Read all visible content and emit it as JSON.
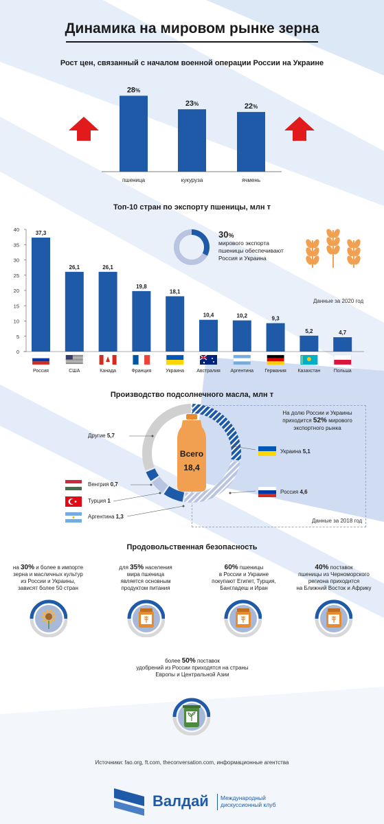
{
  "title": "Динамика на мировом рынке зерна",
  "colors": {
    "primary": "#1e5aa8",
    "light": "#b8c4e0",
    "gray": "#d0d0d0",
    "arrow": "#e11b1b",
    "orange": "#f0a050",
    "icon_blue": "#a8b8d8"
  },
  "price_section": {
    "title": "Рост цен, связанный с началом военной операции России на Украине"
  },
  "exports_section": {
    "title": "Топ-10 стран по экспорту пшеницы, млн т",
    "note": "Данные за 2020 год",
    "share_value": "30",
    "share_unit": "%",
    "share_line1": "мирового экспорта",
    "share_line2": "пшеницы обеспечивают",
    "share_line3": "Россия и Украина"
  },
  "sunflower_section": {
    "title": "Производство подсолнечного масла, млн т",
    "total_label": "Всего",
    "total_value": "18,4",
    "share_line1": "На долю России и Украины",
    "share_line2_pre": "приходится ",
    "share_line2_val": "52%",
    "share_line2_post": " мирового",
    "share_line3": "экспортного рынка",
    "note": "Данные за 2018 год",
    "labels": {
      "other": "Другие",
      "other_val": "5,7",
      "hungary": "Венгрия",
      "hungary_val": "0,7",
      "turkey": "Турция",
      "turkey_val": "1",
      "argentina": "Аргентина",
      "argentina_val": "1,3",
      "ukraine": "Украина",
      "ukraine_val": "5,1",
      "russia": "Россия",
      "russia_val": "4,6"
    }
  },
  "security_section": {
    "title": "Продовольственная безопасность",
    "items": [
      {
        "pre": "на ",
        "val": "30%",
        "l1": " и более в импорте",
        "l2": "зерна и масличных культур",
        "l3": "из России и Украины,",
        "l4": "зависят более 50 стран"
      },
      {
        "pre": "для ",
        "val": "35%",
        "l1": " населения",
        "l2": "мира пшеница",
        "l3": "является основным",
        "l4": "продуктом питания"
      },
      {
        "pre": "",
        "val": "60%",
        "l1": " пшеницы",
        "l2": "в России и Украине",
        "l3": "покупают Египет, Турция,",
        "l4": "Бангладеш и Иран"
      },
      {
        "pre": "",
        "val": "40%",
        "l1": " поставок",
        "l2": "пшеницы из Черноморского",
        "l3": "региона приходится",
        "l4": "на Ближний Восток и Африку"
      },
      {
        "pre": "более ",
        "val": "50%",
        "l1": " поставок",
        "l2": "удобрений из России приходятся на страны",
        "l3": "Европы и Центральной Азии",
        "l4": ""
      }
    ]
  },
  "sources": "Источники: fao.org, ft.com, theconversation.com, информационные агентства",
  "logo": {
    "name": "Валдай",
    "sub1": "Международный",
    "sub2": "дискуссионный клуб"
  },
  "chart_data": [
    {
      "type": "bar",
      "title": "Рост цен, связанный с началом военной операции России на Украине",
      "categories": [
        "пшеница",
        "кукуруза",
        "ячмень"
      ],
      "values": [
        28,
        23,
        22
      ],
      "unit": "%"
    },
    {
      "type": "bar",
      "title": "Топ-10 стран по экспорту пшеницы, млн т",
      "categories": [
        "Россия",
        "США",
        "Канада",
        "Франция",
        "Украина",
        "Австралия",
        "Аргентина",
        "Германия",
        "Казахстан",
        "Польша"
      ],
      "values": [
        37.3,
        26.1,
        26.1,
        19.8,
        18.1,
        10.4,
        10.2,
        9.3,
        5.2,
        4.7
      ],
      "value_labels": [
        "37,3",
        "26,1",
        "26,1",
        "19,8",
        "18,1",
        "10,4",
        "10,2",
        "9,3",
        "5,2",
        "4,7"
      ],
      "ylim": [
        0,
        40
      ],
      "yticks": [
        0,
        5,
        10,
        15,
        20,
        25,
        30,
        35,
        40
      ],
      "grid": false
    },
    {
      "type": "pie",
      "title": "Производство подсолнечного масла, млн т",
      "categories": [
        "Украина",
        "Россия",
        "Аргентина",
        "Турция",
        "Венгрия",
        "Другие"
      ],
      "values": [
        5.1,
        4.6,
        1.3,
        1,
        0.7,
        5.7
      ],
      "total": 18.4
    }
  ]
}
